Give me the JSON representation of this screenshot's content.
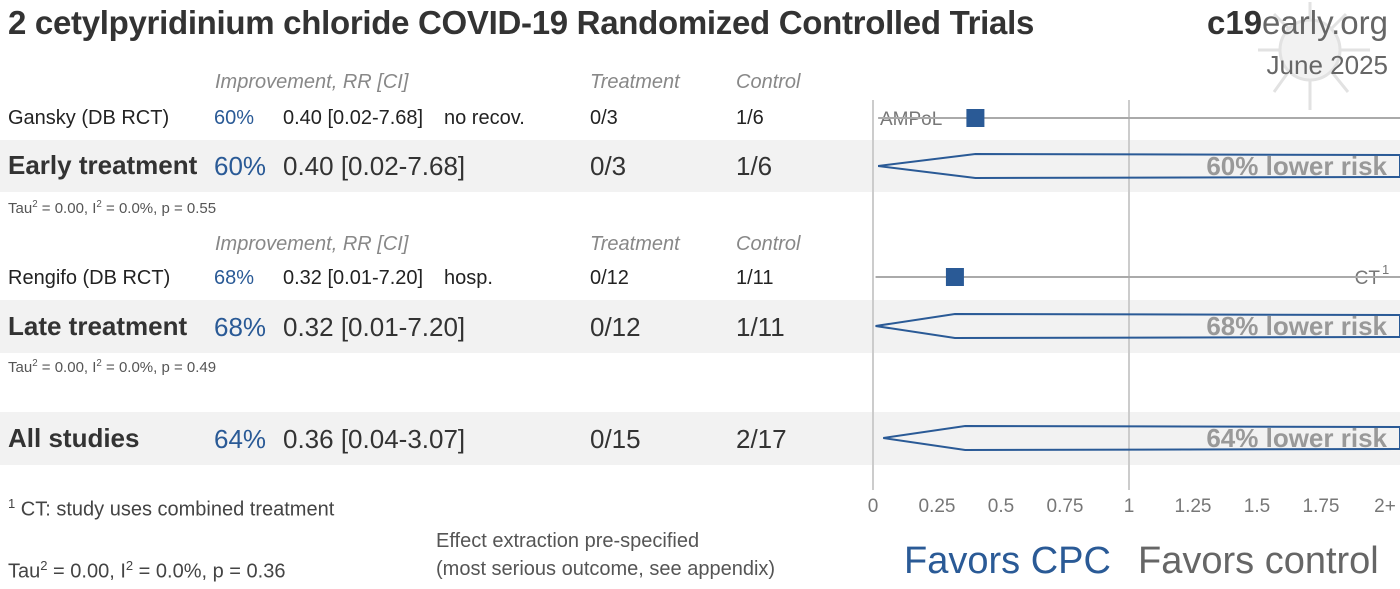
{
  "header": {
    "title": "2 cetylpyridinium chloride COVID-19 Randomized Controlled Trials",
    "brand_bold": "c19",
    "brand_rest": "early.org",
    "date": "June 2025"
  },
  "columns": {
    "improvement": "Improvement, RR [CI]",
    "treatment": "Treatment",
    "control": "Control"
  },
  "early": {
    "study": {
      "name": "Gansky (DB RCT)",
      "pct": "60%",
      "rr": "0.40 [0.02-7.68]",
      "outcome": "no recov.",
      "treatment": "0/3",
      "control": "1/6",
      "marker_label": "AMPoL"
    },
    "group": {
      "name": "Early treatment",
      "pct": "60%",
      "rr": "0.40 [0.02-7.68]",
      "treatment": "0/3",
      "control": "1/6",
      "risk_label": "60% lower risk"
    },
    "hetero": {
      "tau": "Tau",
      "tau_sup": "2",
      "mid": " = 0.00, I",
      "i_sup": "2",
      "end": " = 0.0%, p = 0.55"
    }
  },
  "late": {
    "study": {
      "name": "Rengifo (DB RCT)",
      "pct": "68%",
      "rr": "0.32 [0.01-7.20]",
      "outcome": "hosp.",
      "treatment": "0/12",
      "control": "1/11",
      "marker_label": "CT",
      "marker_sup": "1"
    },
    "group": {
      "name": "Late treatment",
      "pct": "68%",
      "rr": "0.32 [0.01-7.20]",
      "treatment": "0/12",
      "control": "1/11",
      "risk_label": "68% lower risk"
    },
    "hetero": {
      "tau": "Tau",
      "tau_sup": "2",
      "mid": " = 0.00, I",
      "i_sup": "2",
      "end": " = 0.0%, p = 0.49"
    }
  },
  "all": {
    "name": "All studies",
    "pct": "64%",
    "rr": "0.36 [0.04-3.07]",
    "treatment": "0/15",
    "control": "2/17",
    "risk_label": "64% lower risk"
  },
  "footer": {
    "footnote_sup": "1",
    "footnote": " CT: study uses combined treatment",
    "hetero_all": {
      "tau": "Tau",
      "tau_sup": "2",
      "mid": " = 0.00, I",
      "i_sup": "2",
      "end": " = 0.0%, p = 0.36"
    },
    "extraction_line1": "Effect extraction pre-specified",
    "extraction_line2": "(most serious outcome, see appendix)",
    "favors_cpc": "Favors CPC",
    "favors_control": "Favors control"
  },
  "colors": {
    "accent": "#2a5a96",
    "band": "#f2f2f2",
    "axis": "#cccccc"
  },
  "chart_data": {
    "type": "forest",
    "xlim": [
      0,
      2
    ],
    "xticks": [
      0,
      0.25,
      0.5,
      0.75,
      1,
      1.25,
      1.5,
      1.75,
      2
    ],
    "xtick_labels": [
      "0",
      "0.25",
      "0.5",
      "0.75",
      "1",
      "1.25",
      "1.5",
      "1.75",
      "2+"
    ],
    "null_line": 1,
    "studies": [
      {
        "name": "Gansky (DB RCT)",
        "rr": 0.4,
        "ci_low": 0.02,
        "ci_high": 7.68
      },
      {
        "name": "Rengifo (DB RCT)",
        "rr": 0.32,
        "ci_low": 0.01,
        "ci_high": 7.2
      }
    ],
    "pooled": [
      {
        "name": "Early treatment",
        "rr": 0.4,
        "ci_low": 0.02,
        "ci_high": 7.68
      },
      {
        "name": "Late treatment",
        "rr": 0.32,
        "ci_low": 0.01,
        "ci_high": 7.2
      },
      {
        "name": "All studies",
        "rr": 0.36,
        "ci_low": 0.04,
        "ci_high": 3.07
      }
    ]
  }
}
